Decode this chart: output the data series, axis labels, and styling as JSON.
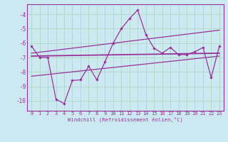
{
  "xlabel": "Windchill (Refroidissement éolien,°C)",
  "xlim": [
    -0.5,
    23.5
  ],
  "ylim": [
    -10.7,
    -3.3
  ],
  "yticks": [
    -10,
    -9,
    -8,
    -7,
    -6,
    -5,
    -4
  ],
  "xticks": [
    0,
    1,
    2,
    3,
    4,
    5,
    6,
    7,
    8,
    9,
    10,
    11,
    12,
    13,
    14,
    15,
    16,
    17,
    18,
    19,
    20,
    21,
    22,
    23
  ],
  "background_color": "#cce8f0",
  "grid_color": "#b0d8c8",
  "line_color": "#993399",
  "data_x": [
    0,
    1,
    2,
    3,
    4,
    5,
    6,
    7,
    8,
    9,
    10,
    11,
    12,
    13,
    14,
    15,
    16,
    17,
    18,
    19,
    20,
    21,
    22,
    23
  ],
  "data_y": [
    -6.2,
    -7.0,
    -7.0,
    -9.9,
    -10.2,
    -8.6,
    -8.55,
    -7.6,
    -8.55,
    -7.3,
    -6.0,
    -5.0,
    -4.3,
    -3.7,
    -5.4,
    -6.35,
    -6.7,
    -6.3,
    -6.8,
    -6.8,
    -6.6,
    -6.3,
    -8.4,
    -6.2
  ],
  "upper_trend_x": [
    0,
    23
  ],
  "upper_trend_y": [
    -6.7,
    -5.1
  ],
  "middle_trend_x": [
    0,
    23
  ],
  "middle_trend_y": [
    -6.9,
    -6.7
  ],
  "lower_trend_x": [
    0,
    23
  ],
  "lower_trend_y": [
    -8.3,
    -6.9
  ]
}
